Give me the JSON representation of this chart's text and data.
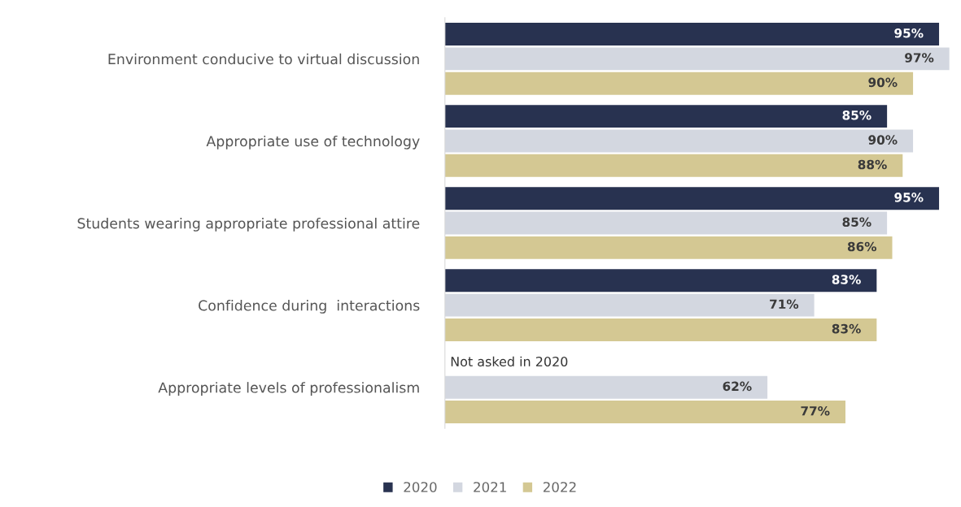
{
  "chart_data": {
    "type": "bar",
    "orientation": "horizontal",
    "legend": "bottom",
    "grid": false,
    "categories": [
      "Environment conducive to virtual discussion",
      "Appropriate use of technology",
      "Students wearing appropriate professional attire",
      "Confidence during  interactions",
      "Appropriate levels of professionalism"
    ],
    "series": [
      {
        "name": "2020",
        "color": "#283250",
        "values": [
          95,
          85,
          95,
          83,
          null
        ],
        "value_labels": [
          "95%",
          "85%",
          "95%",
          "83%",
          null
        ]
      },
      {
        "name": "2021",
        "color": "#d3d7e0",
        "values": [
          97,
          90,
          85,
          71,
          62
        ],
        "value_labels": [
          "97%",
          "90%",
          "85%",
          "71%",
          "62%"
        ]
      },
      {
        "name": "2022",
        "color": "#d4c893",
        "values": [
          90,
          88,
          86,
          83,
          77
        ],
        "value_labels": [
          "90%",
          "88%",
          "86%",
          "83%",
          "77%"
        ]
      }
    ],
    "annotations": [
      "Not asked in 2020"
    ]
  }
}
